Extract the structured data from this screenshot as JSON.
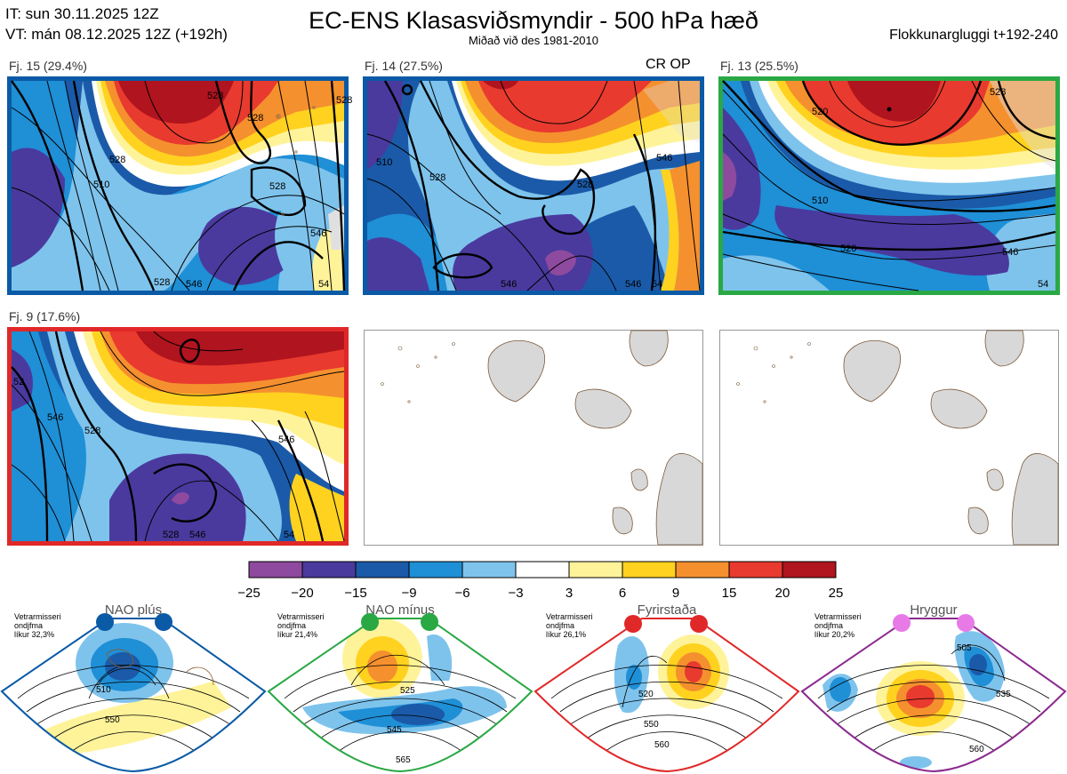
{
  "header": {
    "it_line": "IT: sun 30.11.2025 12Z",
    "vt_line": "VT: mán 08.12.2025 12Z  (+192h)",
    "title": "EC-ENS Klasasviðsmyndir - 500 hPa hæð",
    "subtitle": "Miðað við des 1981-2010",
    "window": "Flokkunargluggi t+192-240"
  },
  "panels": [
    {
      "label": "Fj. 15 (29.4%)",
      "frame_color": "#0a5aa6",
      "extra": ""
    },
    {
      "label": "Fj. 14 (27.5%)",
      "frame_color": "#0a5aa6",
      "extra": "CR OP"
    },
    {
      "label": "Fj. 13 (25.5%)",
      "frame_color": "#2aa844",
      "extra": ""
    },
    {
      "label": "Fj. 9 (17.6%)",
      "frame_color": "#e02828",
      "extra": ""
    }
  ],
  "contour_labels": {
    "p1": [
      "510",
      "528",
      "528",
      "528",
      "546",
      "546",
      "54",
      "528",
      "528",
      "528"
    ],
    "p2": [
      "510",
      "528",
      "528",
      "546",
      "546",
      "54",
      "546"
    ],
    "p3": [
      "520",
      "510",
      "520",
      "546",
      "54",
      "528"
    ],
    "p4": [
      "52",
      "546",
      "528",
      "546",
      "528",
      "546",
      "54"
    ]
  },
  "colorbar": {
    "ticks": [
      "−25",
      "−20",
      "−15",
      "−9",
      "−6",
      "−3",
      "3",
      "6",
      "9",
      "15",
      "20",
      "25"
    ],
    "colors": [
      "#8e4a9e",
      "#4a3a9e",
      "#1b5aa8",
      "#1f8fd6",
      "#7ec3ec",
      "#ffffff",
      "#fff39a",
      "#ffd21f",
      "#f5902e",
      "#e83a2e",
      "#b0141e"
    ]
  },
  "regimes": [
    {
      "name": "NAO plús",
      "note": [
        "Vetrarmisseri",
        "ondjfma",
        "líkur 32,3%"
      ],
      "color": "#0a5aa6",
      "labels": [
        "510",
        "550"
      ]
    },
    {
      "name": "NAO mínus",
      "note": [
        "Vetrarmisseri",
        "ondjfma",
        "líkur 21,4%"
      ],
      "color": "#2aa844",
      "labels": [
        "525",
        "545",
        "565"
      ]
    },
    {
      "name": "Fyrirstaða",
      "note": [
        "Vetrarmisseri",
        "ondjfma",
        "líkur 26,1%"
      ],
      "color": "#e02828",
      "labels": [
        "520",
        "550",
        "560"
      ]
    },
    {
      "name": "Hryggur",
      "note": [
        "Vetrarmisseri",
        "ondjfma",
        "líkur 20,2%"
      ],
      "color": "#8b2a8e",
      "labels": [
        "505",
        "535",
        "560"
      ]
    }
  ]
}
